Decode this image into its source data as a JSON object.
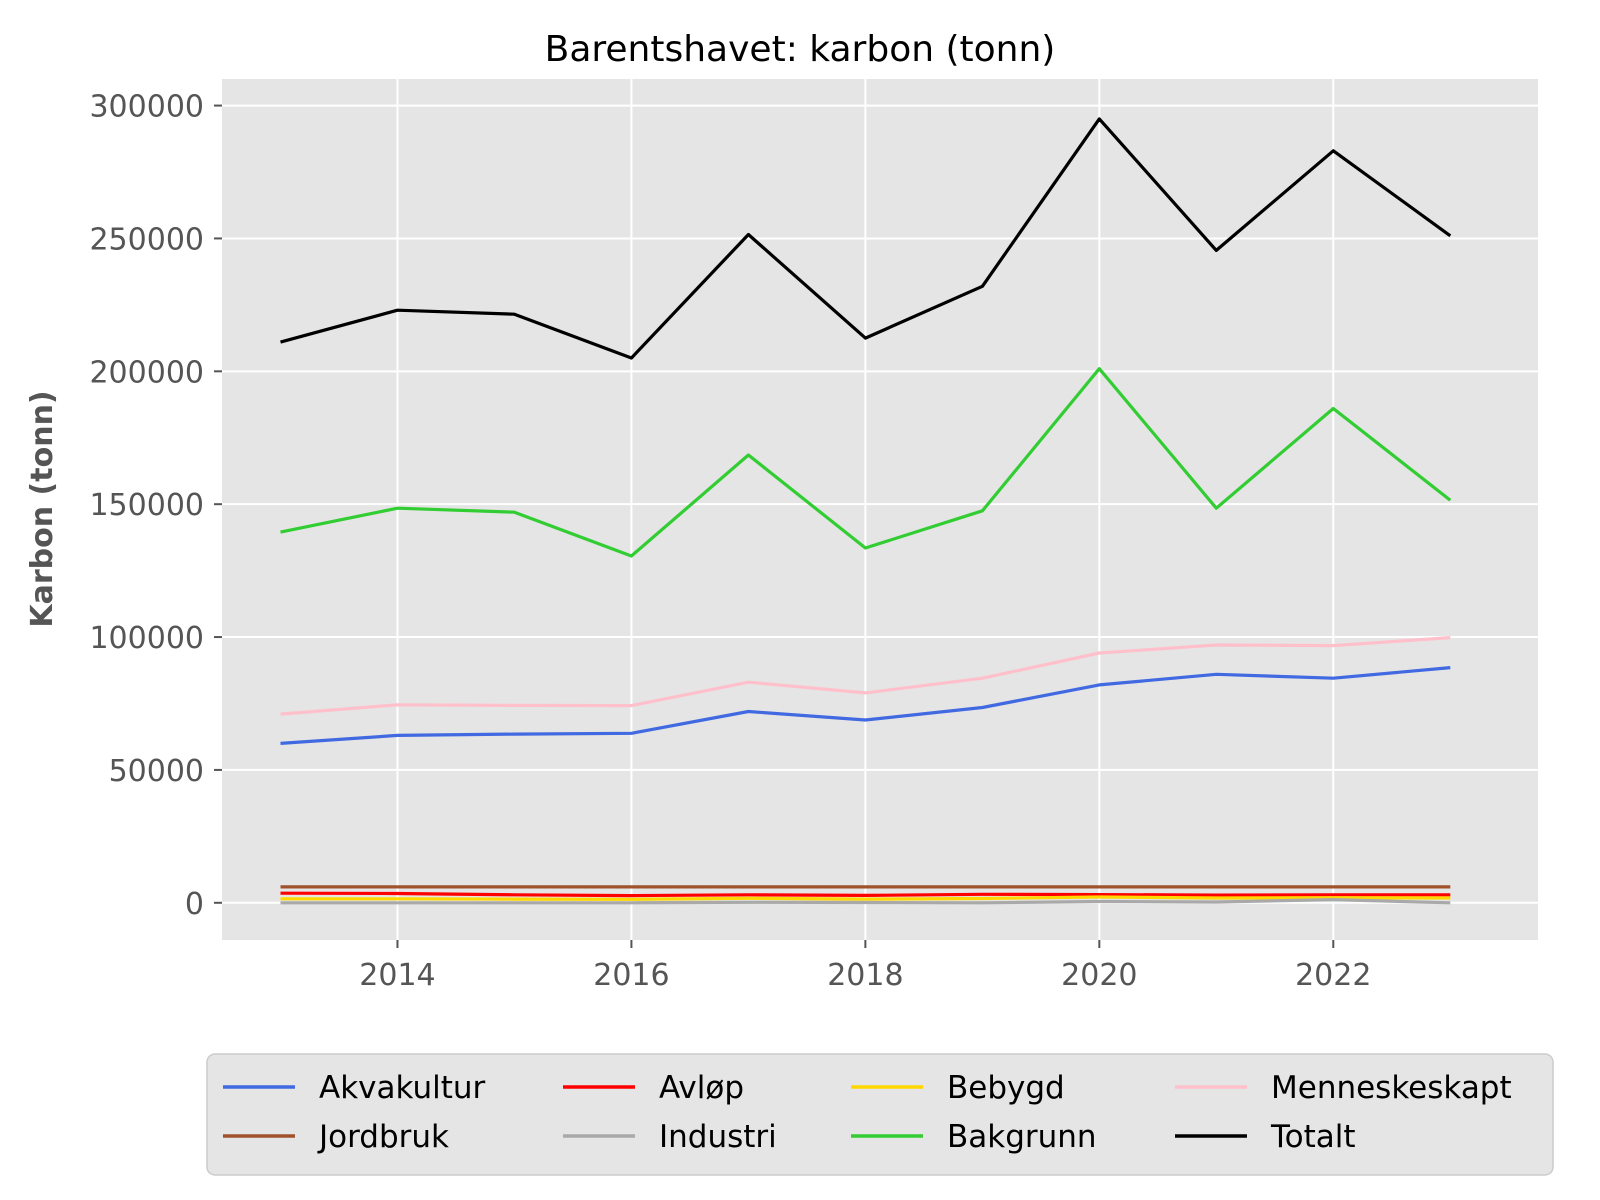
{
  "chart_data": {
    "type": "line",
    "title": "Barentshavet: karbon (tonn)",
    "xlabel": "",
    "ylabel": "Karbon (tonn)",
    "x": [
      2013,
      2014,
      2015,
      2016,
      2017,
      2018,
      2019,
      2020,
      2021,
      2022,
      2023
    ],
    "xlim": [
      2012.5,
      2023.75
    ],
    "ylim": [
      -14000,
      310000
    ],
    "x_ticks": [
      2014,
      2016,
      2018,
      2020,
      2022
    ],
    "y_ticks": [
      0,
      50000,
      100000,
      150000,
      200000,
      250000,
      300000
    ],
    "grid": true,
    "legend_position": "below",
    "series": [
      {
        "name": "Akvakultur",
        "color": "#4169e1",
        "values": [
          60000,
          63000,
          63500,
          63800,
          72000,
          68800,
          73500,
          82000,
          86000,
          84500,
          88500
        ]
      },
      {
        "name": "Avløp",
        "color": "#ff0000",
        "values": [
          3600,
          3500,
          3000,
          2700,
          3000,
          2800,
          3200,
          3100,
          2900,
          3000,
          3000
        ]
      },
      {
        "name": "Bebygd",
        "color": "#ffd700",
        "values": [
          1500,
          1500,
          1400,
          1300,
          1700,
          1400,
          1600,
          2200,
          1800,
          1900,
          1800
        ]
      },
      {
        "name": "Menneskeskapt",
        "color": "#ffc0cb",
        "values": [
          71000,
          74500,
          74300,
          74200,
          83000,
          79000,
          84500,
          94000,
          97000,
          96800,
          99800
        ]
      },
      {
        "name": "Jordbruk",
        "color": "#a0522d",
        "values": [
          6000,
          6000,
          6000,
          6000,
          6000,
          6000,
          6000,
          6000,
          6000,
          6000,
          6000
        ]
      },
      {
        "name": "Industri",
        "color": "#a9a9a9",
        "values": [
          0,
          0,
          0,
          0,
          200,
          100,
          0,
          500,
          300,
          1200,
          0
        ]
      },
      {
        "name": "Bakgrunn",
        "color": "#32cd32",
        "values": [
          139500,
          148500,
          147000,
          130500,
          168500,
          133500,
          147500,
          201000,
          148500,
          186000,
          151500
        ]
      },
      {
        "name": "Totalt",
        "color": "#000000",
        "values": [
          211000,
          223000,
          221500,
          205000,
          251500,
          212500,
          232000,
          295000,
          245500,
          283000,
          251000
        ]
      }
    ]
  }
}
